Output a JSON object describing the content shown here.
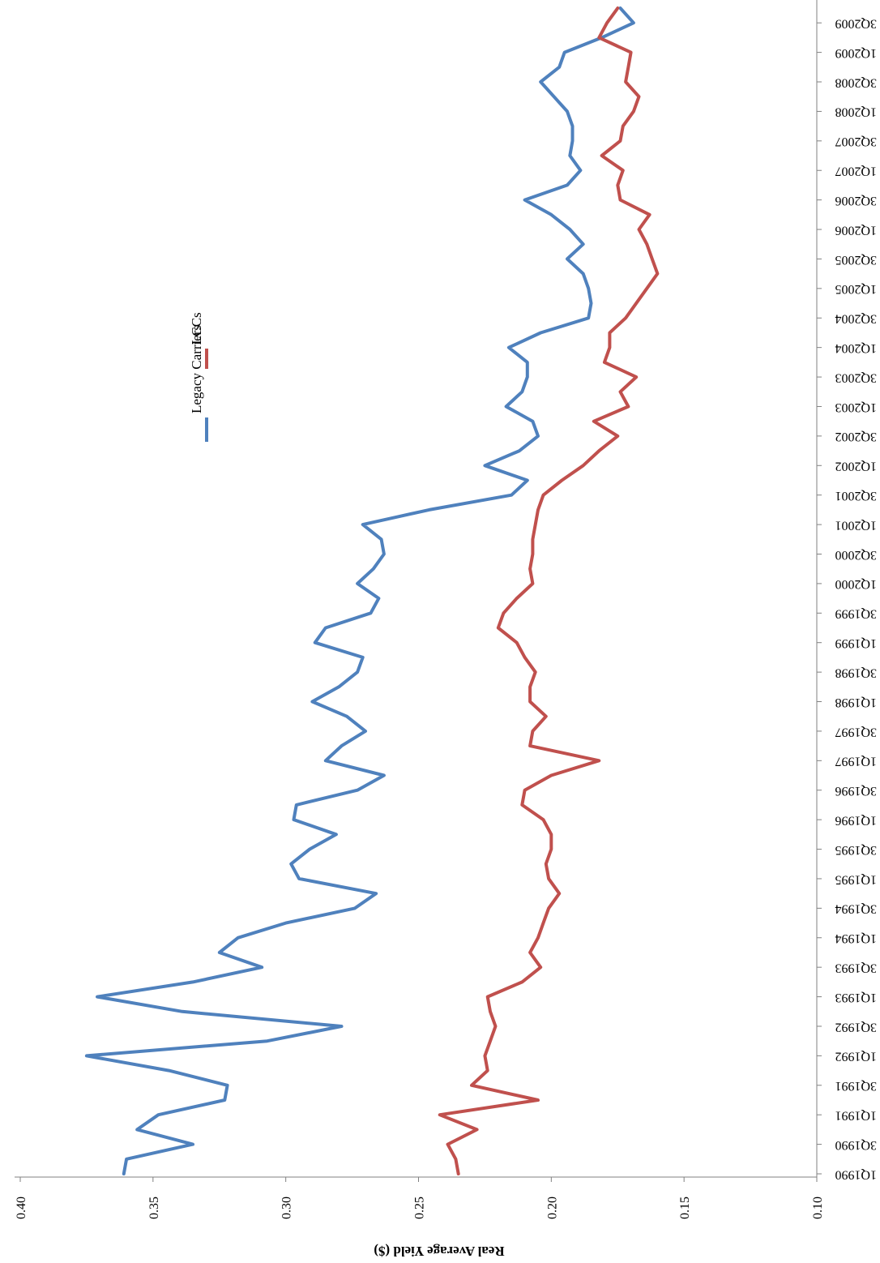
{
  "chart_data": {
    "type": "line",
    "title": "",
    "ylabel": "Real Average Yield ($)",
    "xlabel": "",
    "ylim": [
      0.1,
      0.4
    ],
    "yticks": [
      "0.10",
      "0.15",
      "0.20",
      "0.25",
      "0.30",
      "0.35",
      "0.40"
    ],
    "ytick_values": [
      0.1,
      0.15,
      0.2,
      0.25,
      0.3,
      0.35,
      0.4
    ],
    "x_tick_labels": [
      "1Q1990",
      "3Q1990",
      "1Q1991",
      "3Q1991",
      "1Q1992",
      "3Q1992",
      "1Q1993",
      "3Q1993",
      "1Q1994",
      "3Q1994",
      "1Q1995",
      "3Q1995",
      "1Q1996",
      "3Q1996",
      "1Q1997",
      "3Q1997",
      "1Q1998",
      "3Q1998",
      "1Q1999",
      "3Q1999",
      "1Q2000",
      "3Q2000",
      "1Q2001",
      "3Q2001",
      "1Q2002",
      "3Q2002",
      "1Q2003",
      "3Q2003",
      "1Q2004",
      "3Q2004",
      "1Q2005",
      "3Q2005",
      "1Q2006",
      "3Q2006",
      "1Q2007",
      "3Q2007",
      "1Q2008",
      "3Q2008",
      "1Q2009",
      "3Q2009"
    ],
    "grid": false,
    "legend_position": "center",
    "orientation": "rotated-180",
    "series": [
      {
        "name": "Legacy Carriers",
        "color": "#4F81BD",
        "values": [
          0.361,
          0.36,
          0.335,
          0.356,
          0.348,
          0.323,
          0.322,
          0.344,
          0.375,
          0.307,
          0.279,
          0.339,
          0.371,
          0.335,
          0.309,
          0.325,
          0.318,
          0.3,
          0.274,
          0.266,
          0.295,
          0.298,
          0.291,
          0.281,
          0.297,
          0.296,
          0.273,
          0.263,
          0.285,
          0.279,
          0.27,
          0.277,
          0.29,
          0.28,
          0.273,
          0.271,
          0.289,
          0.285,
          0.268,
          0.265,
          0.273,
          0.267,
          0.263,
          0.264,
          0.271,
          0.246,
          0.215,
          0.209,
          0.225,
          0.212,
          0.205,
          0.207,
          0.217,
          0.211,
          0.209,
          0.209,
          0.216,
          0.204,
          0.186,
          0.185,
          0.186,
          0.188,
          0.194,
          0.188,
          0.193,
          0.2,
          0.21,
          0.194,
          0.189,
          0.193,
          0.192,
          0.192,
          0.194,
          0.199,
          0.204,
          0.197,
          0.195,
          0.181,
          0.169,
          0.174
        ]
      },
      {
        "name": "LCCs",
        "color": "#C0504D",
        "values": [
          0.235,
          0.236,
          0.239,
          0.228,
          0.242,
          0.205,
          0.23,
          0.224,
          0.225,
          0.223,
          0.221,
          0.223,
          0.224,
          0.211,
          0.204,
          0.208,
          0.205,
          0.203,
          0.201,
          0.197,
          0.201,
          0.202,
          0.2,
          0.2,
          0.203,
          0.211,
          0.21,
          0.2,
          0.182,
          0.208,
          0.207,
          0.202,
          0.208,
          0.208,
          0.206,
          0.21,
          0.213,
          0.22,
          0.218,
          0.213,
          0.207,
          0.208,
          0.207,
          0.207,
          0.206,
          0.205,
          0.203,
          0.196,
          0.188,
          0.182,
          0.175,
          0.184,
          0.171,
          0.174,
          0.168,
          0.18,
          0.178,
          0.178,
          0.172,
          0.168,
          0.164,
          0.16,
          0.162,
          0.164,
          0.167,
          0.163,
          0.174,
          0.175,
          0.173,
          0.181,
          0.174,
          0.173,
          0.169,
          0.167,
          0.172,
          0.171,
          0.17,
          0.182,
          0.179,
          0.175
        ]
      }
    ]
  }
}
